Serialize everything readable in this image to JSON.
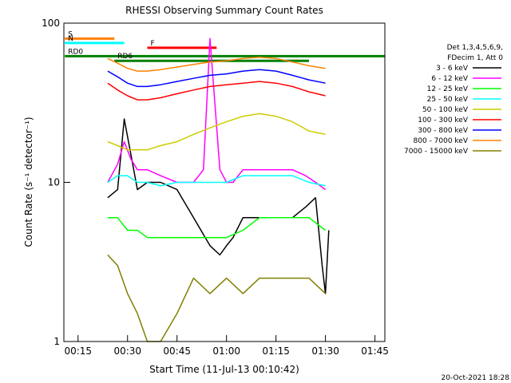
{
  "chart_data": {
    "type": "line",
    "title": "RHESSI Observing Summary Count Rates",
    "xlabel": "Start Time (11-Jul-13 00:10:42)",
    "ylabel": "Count Rate (s⁻¹ detector⁻¹)",
    "y_scale": "log",
    "ylim": [
      1,
      100
    ],
    "xlim": [
      "00:10:42",
      "01:48:00"
    ],
    "x_ticks": [
      "00:15",
      "00:30",
      "00:45",
      "01:00",
      "01:15",
      "01:30",
      "01:45"
    ],
    "y_ticks": [
      "1",
      "10",
      "100"
    ],
    "legend_header": [
      "Det 1,3,4,5,6,9,",
      "FDecim 1, Att 0"
    ],
    "legend_position": "right",
    "timestamp": "20-Oct-2021 18:28",
    "series": [
      {
        "name": "3 - 6 keV",
        "color": "#000000",
        "x": [
          "00:24",
          "00:27",
          "00:29",
          "00:31",
          "00:33",
          "00:36",
          "00:40",
          "00:45",
          "00:50",
          "00:55",
          "00:58",
          "01:00",
          "01:02",
          "01:05",
          "01:10",
          "01:15",
          "01:20",
          "01:24",
          "01:27",
          "01:29",
          "01:30",
          "01:31"
        ],
        "y": [
          8,
          9,
          25,
          15,
          9,
          10,
          10,
          9,
          6,
          4,
          3.5,
          4,
          4.5,
          6,
          6,
          6,
          6,
          7,
          8,
          3,
          2,
          5
        ]
      },
      {
        "name": "6 - 12 keV",
        "color": "#ff00ff",
        "x": [
          "00:24",
          "00:27",
          "00:29",
          "00:31",
          "00:33",
          "00:36",
          "00:40",
          "00:45",
          "00:50",
          "00:53",
          "00:55",
          "00:58",
          "01:00",
          "01:02",
          "01:05",
          "01:10",
          "01:15",
          "01:20",
          "01:24",
          "01:27",
          "01:30"
        ],
        "y": [
          10,
          13,
          18,
          14,
          12,
          12,
          11,
          10,
          10,
          12,
          80,
          12,
          10,
          10,
          12,
          12,
          12,
          12,
          11,
          10,
          9
        ]
      },
      {
        "name": "12 - 25 keV",
        "color": "#00ff00",
        "x": [
          "00:24",
          "00:27",
          "00:30",
          "00:33",
          "00:36",
          "00:40",
          "00:45",
          "00:50",
          "00:55",
          "01:00",
          "01:05",
          "01:10",
          "01:15",
          "01:20",
          "01:25",
          "01:30"
        ],
        "y": [
          6,
          6,
          5,
          5,
          4.5,
          4.5,
          4.5,
          4.5,
          4.5,
          4.5,
          5,
          6,
          6,
          6,
          6,
          5
        ]
      },
      {
        "name": "25 - 50 keV",
        "color": "#00ffff",
        "x": [
          "00:24",
          "00:27",
          "00:30",
          "00:33",
          "00:36",
          "00:40",
          "00:45",
          "00:50",
          "00:55",
          "01:00",
          "01:05",
          "01:10",
          "01:15",
          "01:20",
          "01:25",
          "01:30"
        ],
        "y": [
          10,
          11,
          11,
          10,
          10,
          9.5,
          10,
          10,
          10,
          10,
          11,
          11,
          11,
          11,
          10,
          9.5
        ]
      },
      {
        "name": "50 - 100 keV",
        "color": "#cccc00",
        "x": [
          "00:24",
          "00:27",
          "00:30",
          "00:33",
          "00:36",
          "00:40",
          "00:45",
          "00:50",
          "00:55",
          "01:00",
          "01:05",
          "01:10",
          "01:15",
          "01:20",
          "01:25",
          "01:30"
        ],
        "y": [
          18,
          17,
          16,
          16,
          16,
          17,
          18,
          20,
          22,
          24,
          26,
          27,
          26,
          24,
          21,
          20
        ]
      },
      {
        "name": "100 - 300 keV",
        "color": "#ff0000",
        "x": [
          "00:24",
          "00:27",
          "00:30",
          "00:33",
          "00:36",
          "00:40",
          "00:45",
          "00:50",
          "00:55",
          "01:00",
          "01:05",
          "01:10",
          "01:15",
          "01:20",
          "01:25",
          "01:30"
        ],
        "y": [
          42,
          38,
          35,
          33,
          33,
          34,
          36,
          38,
          40,
          41,
          42,
          43,
          42,
          40,
          37,
          35
        ]
      },
      {
        "name": "300 - 800 keV",
        "color": "#0000ff",
        "x": [
          "00:24",
          "00:27",
          "00:30",
          "00:33",
          "00:36",
          "00:40",
          "00:45",
          "00:50",
          "00:55",
          "01:00",
          "01:05",
          "01:10",
          "01:15",
          "01:20",
          "01:25",
          "01:30"
        ],
        "y": [
          50,
          46,
          42,
          40,
          40,
          41,
          43,
          45,
          47,
          48,
          50,
          51,
          50,
          47,
          44,
          42
        ]
      },
      {
        "name": "800 - 7000 keV",
        "color": "#ff8000",
        "x": [
          "00:24",
          "00:27",
          "00:30",
          "00:33",
          "00:36",
          "00:40",
          "00:45",
          "00:50",
          "00:55",
          "01:00",
          "01:05",
          "01:10",
          "01:15",
          "01:20",
          "01:25",
          "01:30"
        ],
        "y": [
          60,
          56,
          52,
          50,
          50,
          51,
          53,
          55,
          57,
          58,
          60,
          61,
          60,
          57,
          54,
          52
        ]
      },
      {
        "name": "7000 - 15000 keV",
        "color": "#808000",
        "x": [
          "00:24",
          "00:27",
          "00:30",
          "00:33",
          "00:36",
          "00:40",
          "00:45",
          "00:50",
          "00:55",
          "01:00",
          "01:05",
          "01:10",
          "01:15",
          "01:20",
          "01:25",
          "01:30"
        ],
        "y": [
          3.5,
          3,
          2,
          1.5,
          1,
          1,
          1.5,
          2.5,
          2,
          2.5,
          2,
          2.5,
          2.5,
          2.5,
          2.5,
          2
        ]
      }
    ],
    "annotations": [
      {
        "text": "S",
        "color": "#ff8000",
        "x": [
          "00:11",
          "00:26"
        ],
        "y": 80
      },
      {
        "text": "N",
        "color": "#00ffff",
        "x": [
          "00:11",
          "00:29"
        ],
        "y": 75
      },
      {
        "text": "F",
        "color": "#ff0000",
        "x": [
          "00:36",
          "00:57"
        ],
        "y": 70
      },
      {
        "text": "RD0",
        "color": "#008000",
        "x": [
          "00:11",
          "01:48"
        ],
        "y": 62
      },
      {
        "text": "RD6",
        "color": "#008000",
        "x": [
          "00:26",
          "01:25"
        ],
        "y": 58
      }
    ]
  }
}
